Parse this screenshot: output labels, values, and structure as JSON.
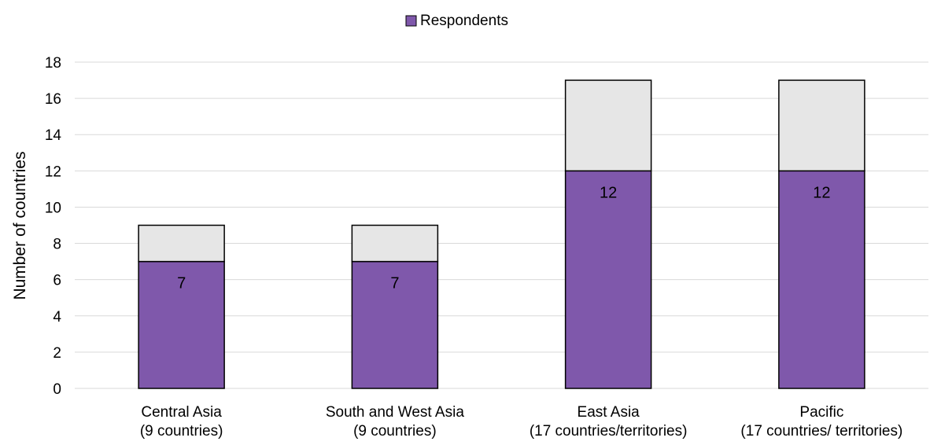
{
  "chart_data": {
    "type": "bar",
    "stacked": true,
    "categories": [
      [
        "Central Asia",
        "(9 countries)"
      ],
      [
        "South and West Asia",
        "(9 countries)"
      ],
      [
        "East Asia",
        "(17 countries/territories)"
      ],
      [
        "Pacific",
        "(17 countries/ territories)"
      ]
    ],
    "series": [
      {
        "name": "Respondents",
        "values": [
          7,
          7,
          12,
          12
        ],
        "color": "#7f58ab",
        "show_labels": true
      },
      {
        "values": [
          2,
          2,
          5,
          5
        ],
        "color": "#e6e6e6",
        "show_labels": false
      }
    ],
    "title": "",
    "xlabel": "",
    "ylabel": "Number of countries",
    "ylim": [
      0,
      18
    ],
    "yticks": [
      0,
      2,
      4,
      6,
      8,
      10,
      12,
      14,
      16,
      18
    ],
    "grid": true,
    "legend_position": "top-center",
    "gridline_color": "#d9d9d9",
    "bar_outline_color": "#000000"
  }
}
